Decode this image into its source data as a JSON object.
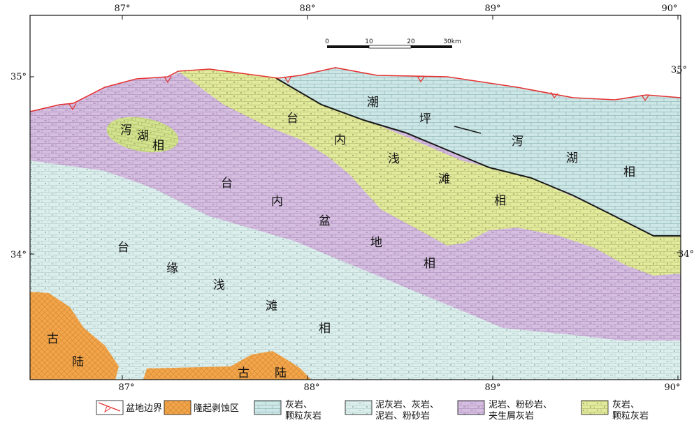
{
  "colors": {
    "tidal_flat_lagoon": "#cde6e6",
    "platform_shoal": "#e2ea9c",
    "intraplatform_basin": "#d6bee1",
    "platform_margin_shoal": "#dcefec",
    "uplift_zone": "#f2a54a",
    "basin_boundary": "#e53333",
    "facies_line": "#1a1a1a"
  },
  "axes": {
    "top_ticks": [
      "87°",
      "88°",
      "89°",
      "90°"
    ],
    "bottom_ticks": [
      "87°",
      "88°",
      "89°",
      "90°"
    ],
    "left_ticks": [
      "35°",
      "34°"
    ],
    "right_ticks": [
      "35°",
      "34°"
    ]
  },
  "scale_bar": {
    "labels": [
      "0",
      "10",
      "20",
      "30km"
    ]
  },
  "region_labels": {
    "tidal_flat_lagoon": [
      "潮",
      "坪",
      "泻",
      "湖",
      "相"
    ],
    "lagoon_small": [
      "泻",
      "湖",
      "相"
    ],
    "platform_shoal": [
      "台",
      "内",
      "浅",
      "滩",
      "相"
    ],
    "intraplatform_basin": [
      "台",
      "内",
      "盆",
      "地",
      "相"
    ],
    "platform_margin_shoal": [
      "台",
      "缘",
      "浅",
      "滩",
      "相"
    ],
    "old_land_left": [
      "古",
      "陆"
    ],
    "old_land_bottom": [
      "古",
      "陆"
    ]
  },
  "legend": [
    {
      "symbol": "boundary-line",
      "lines": [
        "盆地边界"
      ]
    },
    {
      "symbol": "uplift-zone",
      "lines": [
        "隆起剥蚀区"
      ]
    },
    {
      "symbol": "limestone",
      "lines": [
        "灰岩、",
        "颗粒灰岩"
      ]
    },
    {
      "symbol": "marl-mix",
      "lines": [
        "泥灰岩、灰岩、",
        "泥岩、粉砂岩"
      ]
    },
    {
      "symbol": "mudstone-mix",
      "lines": [
        "泥岩、粉砂岩、",
        "夹生屑灰岩"
      ]
    },
    {
      "symbol": "grain-limestone",
      "lines": [
        "灰岩、",
        "颗粒灰岩"
      ]
    }
  ]
}
